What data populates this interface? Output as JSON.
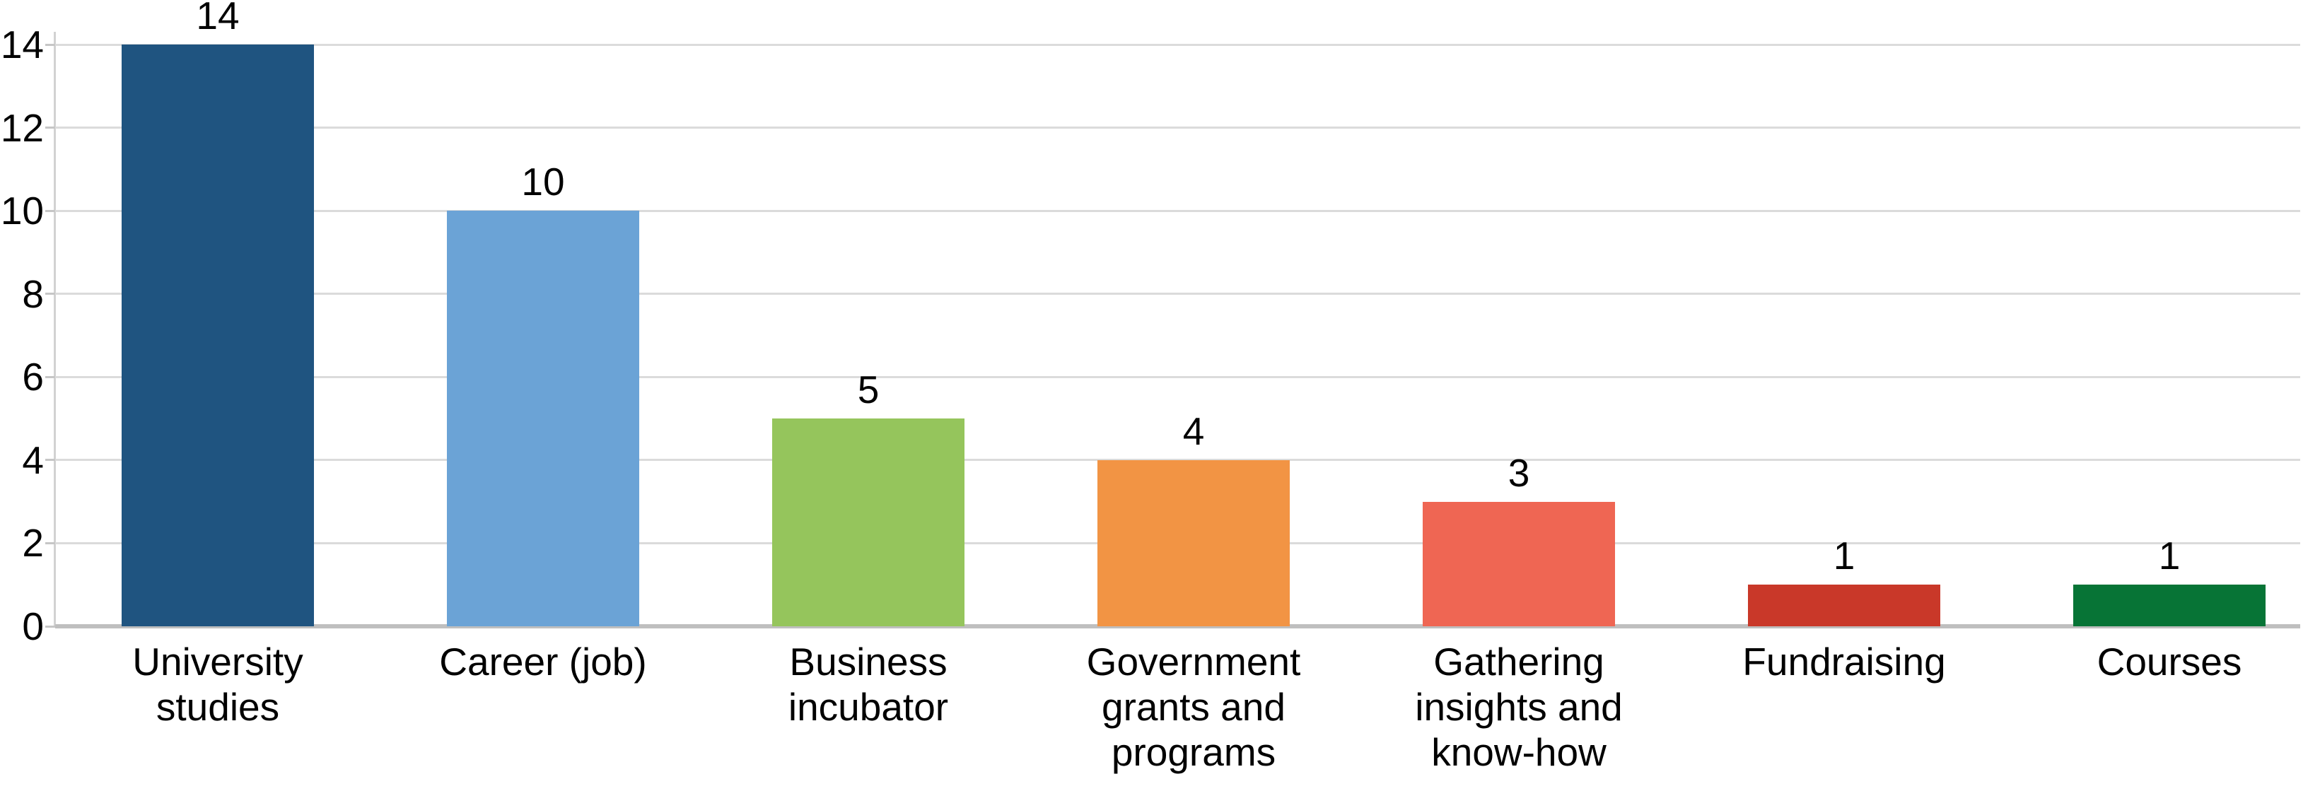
{
  "chart_data": {
    "type": "bar",
    "title": "",
    "xlabel": "",
    "ylabel": "",
    "categories": [
      "University studies",
      "Career (job)",
      "Business incubator",
      "Government grants and programs",
      "Gathering insights and know-how",
      "Fundraising",
      "Courses"
    ],
    "categories_wrapped": [
      "University\nstudies",
      "Career (job)",
      "Business\nincubator",
      "Government\ngrants and\nprograms",
      "Gathering\ninsights and\nknow-how",
      "Fundraising",
      "Courses"
    ],
    "values": [
      14,
      10,
      5,
      4,
      3,
      1,
      1
    ],
    "data_labels": [
      "14",
      "10",
      "5",
      "4",
      "3",
      "1",
      "1"
    ],
    "bar_colors": [
      "#1F5480",
      "#6BA3D6",
      "#95C55C",
      "#F29444",
      "#EF6653",
      "#C93829",
      "#077436"
    ],
    "y_ticks": [
      0,
      2,
      4,
      6,
      8,
      10,
      12,
      14
    ],
    "y_tick_labels": [
      "0",
      "2",
      "4",
      "6",
      "8",
      "10",
      "12",
      "14"
    ],
    "ylim": [
      0,
      14
    ],
    "grid": "horizontal",
    "legend": "none",
    "colors": {
      "background": "#FFFFFF",
      "gridline": "#DBDBDB",
      "baseline": "#BFBFBF",
      "axis_line": "#D2D2D2",
      "text": "#000000"
    }
  }
}
